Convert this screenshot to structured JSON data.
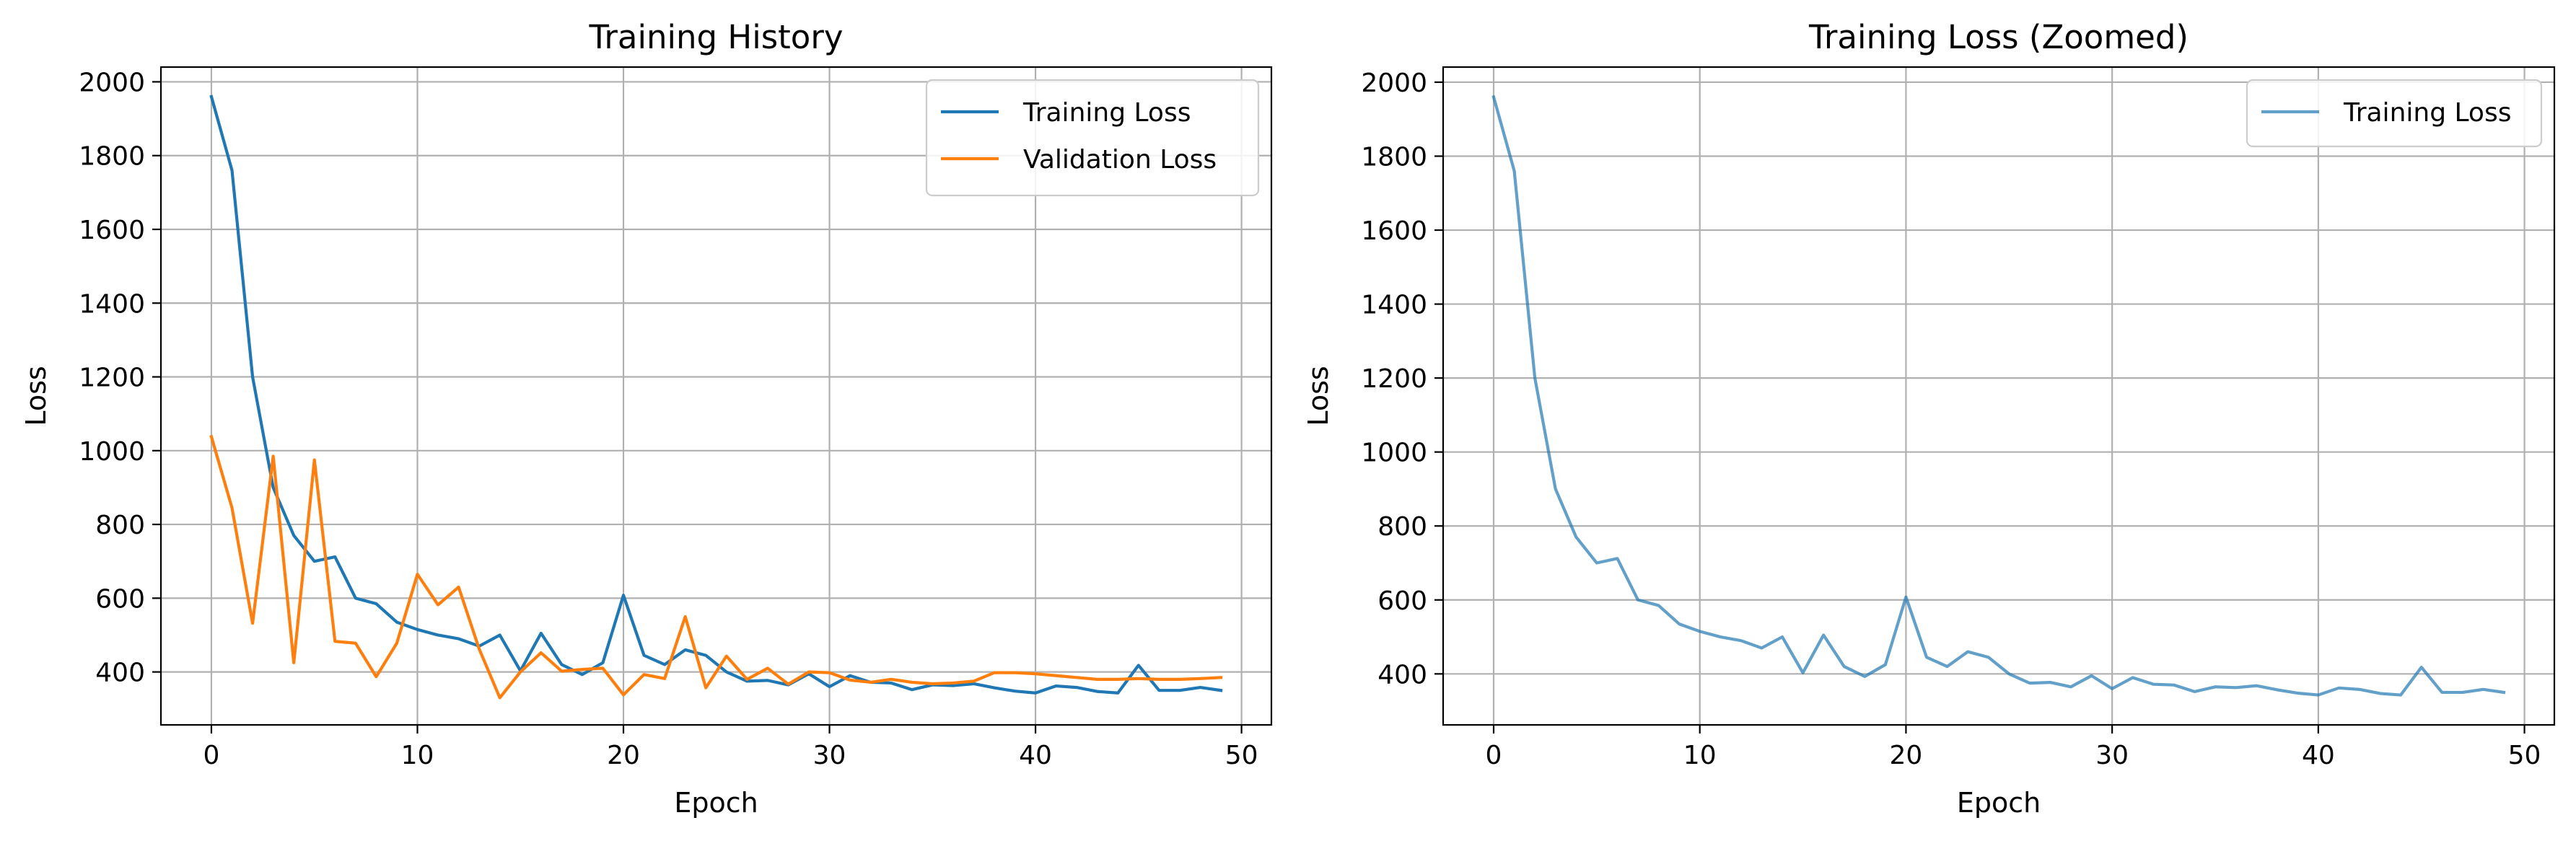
{
  "chart_data": [
    {
      "type": "line",
      "title": "Training History",
      "xlabel": "Epoch",
      "ylabel": "Loss",
      "xlim": [
        -2.45,
        51.45
      ],
      "ylim": [
        256.5,
        2040
      ],
      "xticks": [
        0,
        10,
        20,
        30,
        40,
        50
      ],
      "yticks": [
        400,
        600,
        800,
        1000,
        1200,
        1400,
        1600,
        1800,
        2000
      ],
      "grid": true,
      "legend_position": "top-right",
      "x": [
        0,
        1,
        2,
        3,
        4,
        5,
        6,
        7,
        8,
        9,
        10,
        11,
        12,
        13,
        14,
        15,
        16,
        17,
        18,
        19,
        20,
        21,
        22,
        23,
        24,
        25,
        26,
        27,
        28,
        29,
        30,
        31,
        32,
        33,
        34,
        35,
        36,
        37,
        38,
        39,
        40,
        41,
        42,
        43,
        44,
        45,
        46,
        47,
        48,
        49
      ],
      "series": [
        {
          "name": "Training Loss",
          "color": "#1f77b4",
          "values": [
            1960,
            1760,
            1200,
            900,
            770,
            700,
            712,
            600,
            585,
            535,
            515,
            500,
            490,
            470,
            500,
            403,
            505,
            420,
            393,
            425,
            608,
            445,
            420,
            460,
            445,
            400,
            375,
            377,
            365,
            395,
            360,
            390,
            372,
            370,
            352,
            365,
            363,
            368,
            357,
            348,
            343,
            362,
            358,
            347,
            343,
            418,
            350,
            350,
            358,
            350
          ]
        },
        {
          "name": "Validation Loss",
          "color": "#ff7f0e",
          "values": [
            1038,
            845,
            532,
            985,
            425,
            975,
            483,
            478,
            387,
            478,
            665,
            582,
            630,
            462,
            330,
            400,
            452,
            402,
            407,
            410,
            338,
            393,
            382,
            550,
            357,
            443,
            380,
            410,
            367,
            400,
            398,
            378,
            372,
            380,
            372,
            368,
            370,
            375,
            398,
            398,
            395,
            390,
            385,
            380,
            380,
            382,
            380,
            380,
            382,
            385
          ]
        }
      ]
    },
    {
      "type": "line",
      "title": "Training Loss (Zoomed)",
      "xlabel": "Epoch",
      "ylabel": "Loss",
      "xlim": [
        -2.45,
        51.45
      ],
      "ylim": [
        262.15,
        2040.85
      ],
      "xticks": [
        0,
        10,
        20,
        30,
        40,
        50
      ],
      "yticks": [
        400,
        600,
        800,
        1000,
        1200,
        1400,
        1600,
        1800,
        2000
      ],
      "grid": true,
      "legend_position": "top-right",
      "x": [
        0,
        1,
        2,
        3,
        4,
        5,
        6,
        7,
        8,
        9,
        10,
        11,
        12,
        13,
        14,
        15,
        16,
        17,
        18,
        19,
        20,
        21,
        22,
        23,
        24,
        25,
        26,
        27,
        28,
        29,
        30,
        31,
        32,
        33,
        34,
        35,
        36,
        37,
        38,
        39,
        40,
        41,
        42,
        43,
        44,
        45,
        46,
        47,
        48,
        49
      ],
      "series": [
        {
          "name": "Training Loss",
          "color": "#1f77b4",
          "opacity": 0.7,
          "values": [
            1960,
            1760,
            1200,
            900,
            770,
            700,
            712,
            600,
            585,
            535,
            515,
            500,
            490,
            470,
            500,
            403,
            505,
            420,
            393,
            425,
            608,
            445,
            420,
            460,
            445,
            400,
            375,
            377,
            365,
            395,
            360,
            390,
            372,
            370,
            352,
            365,
            363,
            368,
            357,
            348,
            343,
            362,
            358,
            347,
            343,
            418,
            350,
            350,
            358,
            350
          ]
        }
      ]
    }
  ]
}
